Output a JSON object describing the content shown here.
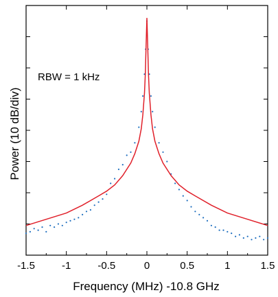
{
  "chart_data": {
    "type": "line",
    "title": "",
    "xlabel": "Frequency (MHz) -10.8 GHz",
    "ylabel": "Power (10 dB/div)",
    "annotation": "RBW = 1 kHz",
    "xlim": [
      -1.5,
      1.5
    ],
    "ylim": [
      0,
      8
    ],
    "x_ticks": [
      -1.5,
      -1,
      -0.5,
      0,
      0.5,
      1,
      1.5
    ],
    "x_tick_labels": [
      "-1.5",
      "-1",
      "-0.5",
      "0",
      "0.5",
      "1",
      "1.5"
    ],
    "y_tick_labels_shown": false,
    "grid": false,
    "series": [
      {
        "style": "dots",
        "color": "#1f6fbf",
        "points": [
          [
            -1.5,
            0.7
          ],
          [
            -1.45,
            0.75
          ],
          [
            -1.4,
            0.85
          ],
          [
            -1.35,
            0.8
          ],
          [
            -1.3,
            0.9
          ],
          [
            -1.25,
            0.75
          ],
          [
            -1.2,
            0.95
          ],
          [
            -1.15,
            0.9
          ],
          [
            -1.1,
            1.0
          ],
          [
            -1.05,
            0.95
          ],
          [
            -1.0,
            1.05
          ],
          [
            -0.95,
            1.1
          ],
          [
            -0.9,
            1.15
          ],
          [
            -0.85,
            1.2
          ],
          [
            -0.8,
            1.3
          ],
          [
            -0.75,
            1.4
          ],
          [
            -0.7,
            1.45
          ],
          [
            -0.65,
            1.6
          ],
          [
            -0.6,
            1.7
          ],
          [
            -0.55,
            1.8
          ],
          [
            -0.5,
            1.95
          ],
          [
            -0.45,
            2.3
          ],
          [
            -0.4,
            2.45
          ],
          [
            -0.35,
            2.75
          ],
          [
            -0.3,
            2.9
          ],
          [
            -0.25,
            3.2
          ],
          [
            -0.2,
            3.3
          ],
          [
            -0.15,
            3.6
          ],
          [
            -0.1,
            4.1
          ],
          [
            -0.07,
            4.6
          ],
          [
            -0.05,
            5.1
          ],
          [
            -0.03,
            5.8
          ],
          [
            -0.015,
            6.6
          ],
          [
            0.0,
            7.5
          ],
          [
            0.015,
            6.6
          ],
          [
            0.03,
            5.8
          ],
          [
            0.05,
            5.1
          ],
          [
            0.07,
            4.6
          ],
          [
            0.1,
            4.1
          ],
          [
            0.15,
            3.6
          ],
          [
            0.2,
            3.3
          ],
          [
            0.25,
            3.0
          ],
          [
            0.3,
            2.6
          ],
          [
            0.35,
            2.3
          ],
          [
            0.4,
            2.1
          ],
          [
            0.45,
            1.9
          ],
          [
            0.5,
            1.75
          ],
          [
            0.55,
            1.55
          ],
          [
            0.6,
            1.4
          ],
          [
            0.65,
            1.3
          ],
          [
            0.7,
            1.2
          ],
          [
            0.75,
            1.1
          ],
          [
            0.8,
            0.95
          ],
          [
            0.85,
            0.9
          ],
          [
            0.9,
            0.8
          ],
          [
            0.95,
            0.8
          ],
          [
            1.0,
            0.75
          ],
          [
            1.05,
            0.7
          ],
          [
            1.1,
            0.6
          ],
          [
            1.15,
            0.65
          ],
          [
            1.2,
            0.55
          ],
          [
            1.25,
            0.6
          ],
          [
            1.3,
            0.5
          ],
          [
            1.35,
            0.55
          ],
          [
            1.4,
            0.6
          ],
          [
            1.45,
            0.5
          ],
          [
            1.5,
            0.55
          ]
        ]
      },
      {
        "style": "line",
        "color": "#e0202a",
        "points": [
          [
            -1.5,
            0.95
          ],
          [
            -1.25,
            1.15
          ],
          [
            -1.0,
            1.35
          ],
          [
            -0.8,
            1.6
          ],
          [
            -0.6,
            1.9
          ],
          [
            -0.5,
            2.05
          ],
          [
            -0.4,
            2.25
          ],
          [
            -0.3,
            2.55
          ],
          [
            -0.2,
            2.95
          ],
          [
            -0.15,
            3.25
          ],
          [
            -0.1,
            3.65
          ],
          [
            -0.07,
            4.05
          ],
          [
            -0.05,
            4.5
          ],
          [
            -0.03,
            5.2
          ],
          [
            -0.02,
            5.8
          ],
          [
            -0.01,
            6.7
          ],
          [
            0.0,
            7.6
          ],
          [
            0.01,
            6.7
          ],
          [
            0.02,
            5.8
          ],
          [
            0.03,
            5.2
          ],
          [
            0.05,
            4.5
          ],
          [
            0.07,
            4.05
          ],
          [
            0.1,
            3.65
          ],
          [
            0.15,
            3.25
          ],
          [
            0.2,
            2.95
          ],
          [
            0.3,
            2.55
          ],
          [
            0.4,
            2.25
          ],
          [
            0.5,
            2.05
          ],
          [
            0.6,
            1.9
          ],
          [
            0.8,
            1.6
          ],
          [
            1.0,
            1.35
          ],
          [
            1.25,
            1.15
          ],
          [
            1.5,
            0.95
          ]
        ]
      }
    ]
  }
}
